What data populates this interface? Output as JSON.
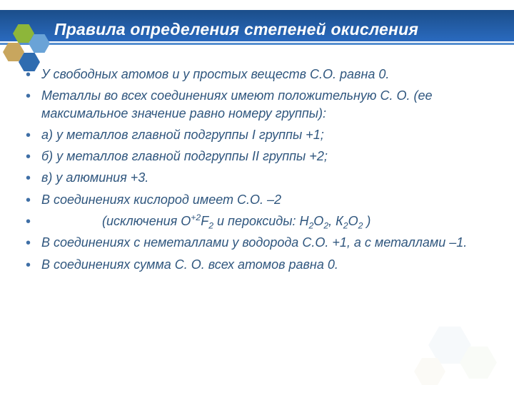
{
  "colors": {
    "title_text": "#ffffff",
    "band_grad_from": "#1b4e8a",
    "band_grad_to": "#2a6abf",
    "underline": "#568fd0",
    "body_text": "#2f567e",
    "bullet": "#3f6fa6",
    "hex_green": "#8db63a",
    "hex_blue_light": "#6aa3d7",
    "hex_blue_dark": "#2f6cb0",
    "hex_tan": "#c8a65e",
    "hex_br1": "#dce8f3",
    "hex_br2": "#e8f1e0",
    "hex_br3": "#f2ecdc"
  },
  "title": "Правила определения степеней окисления",
  "items": [
    {
      "html": "У свободных атомов и у простых веществ С.О. равна 0."
    },
    {
      "html": "Металлы во всех соединениях имеют положительную С. О. (ее максимальное значение равно номеру группы):"
    },
    {
      "html": "а) у металлов главной подгруппы I группы +1;"
    },
    {
      "html": "б) у металлов главной подгруппы  II группы +2;"
    },
    {
      "html": "в) у алюминия +3."
    },
    {
      "html": "В соединениях кислород имеет С.О. –2"
    },
    {
      "html": "&nbsp;&nbsp;&nbsp;&nbsp;&nbsp;&nbsp;&nbsp;&nbsp;&nbsp;&nbsp;&nbsp;&nbsp;&nbsp;&nbsp;&nbsp;&nbsp;&nbsp;(исключения O<sup>+2</sup>F<sub>2</sub> и пероксиды: Н<sub>2</sub>О<sub>2</sub>, К<sub>2</sub>О<sub>2</sub> )"
    },
    {
      "html": "В соединениях с неметаллами у водорода С.О. +1, а с металлами –1.",
      "justify": true
    },
    {
      "html": "В соединениях сумма С. О. всех атомов равна  0."
    }
  ]
}
